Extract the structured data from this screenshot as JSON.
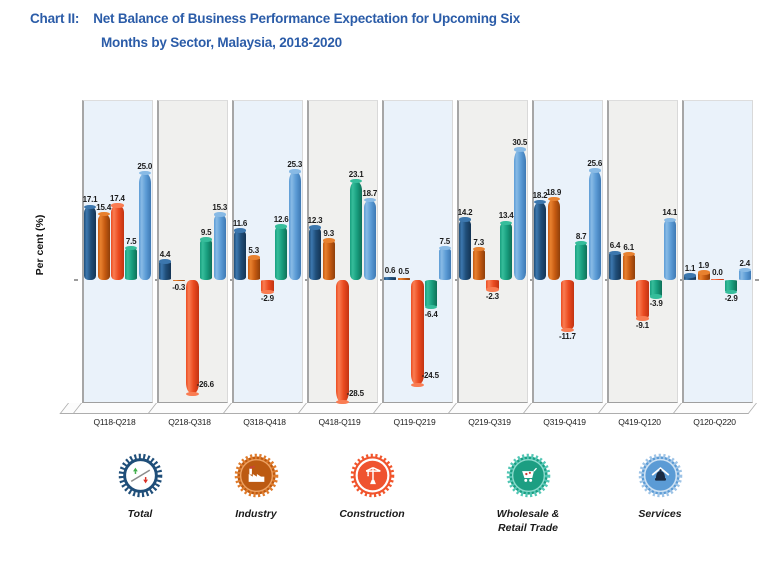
{
  "title": {
    "prefix": "Chart II:",
    "line1": "Net Balance of Business Performance Expectation for Upcoming Six",
    "line2": "Months by Sector, Malaysia, 2018-2020"
  },
  "chart_data": {
    "type": "bar",
    "title": "Net Balance of Business Performance Expectation for Upcoming Six Months by Sector, Malaysia, 2018-2020",
    "ylabel": "Per cent (%)",
    "xlabel": "",
    "grid": false,
    "value_labels": true,
    "legend_position": "bottom",
    "ylim": [
      -30,
      42
    ],
    "panel_colors": [
      "#EAF2FA",
      "#F0F0EE"
    ],
    "categories": [
      "Q118-Q218",
      "Q218-Q318",
      "Q318-Q418",
      "Q418-Q119",
      "Q119-Q219",
      "Q219-Q319",
      "Q319-Q419",
      "Q419-Q120",
      "Q120-Q220"
    ],
    "series": [
      {
        "name": "Total",
        "color": "#1F4E79",
        "values": [
          17.1,
          4.4,
          11.6,
          12.3,
          0.6,
          14.2,
          18.2,
          6.4,
          1.1
        ]
      },
      {
        "name": "Industry",
        "color": "#C55A11",
        "values": [
          15.4,
          -0.3,
          5.3,
          9.3,
          0.5,
          7.3,
          18.9,
          6.1,
          1.9
        ]
      },
      {
        "name": "Construction",
        "color": "#EB4B20",
        "values": [
          17.4,
          -26.6,
          -2.9,
          -28.5,
          -24.5,
          -2.3,
          -11.7,
          -9.1,
          0.0
        ]
      },
      {
        "name": "Wholesale & Retail Trade",
        "color": "#189E7E",
        "values": [
          7.5,
          9.5,
          12.6,
          23.1,
          -6.4,
          13.4,
          8.7,
          -3.9,
          -2.9
        ]
      },
      {
        "name": "Services",
        "color": "#5B9BD5",
        "values": [
          25.0,
          15.3,
          25.3,
          18.7,
          7.5,
          30.5,
          25.6,
          14.1,
          2.4
        ]
      }
    ]
  },
  "legend": {
    "items": [
      {
        "label": "Total",
        "icon": "total-icon",
        "color": "#1F4E79"
      },
      {
        "label": "Industry",
        "icon": "industry-icon",
        "color": "#C55A11"
      },
      {
        "label": "Construction",
        "icon": "construction-icon",
        "color": "#EB4B20"
      },
      {
        "label": "Wholesale &\nRetail Trade",
        "icon": "wholesale-retail-icon",
        "color": "#189E7E"
      },
      {
        "label": "Services",
        "icon": "services-icon",
        "color": "#5B9BD5"
      }
    ]
  }
}
